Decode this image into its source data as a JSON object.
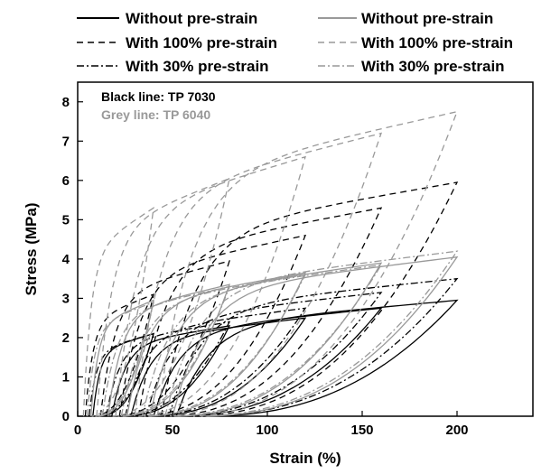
{
  "chart_data": {
    "type": "line",
    "xlabel": "Strain (%)",
    "ylabel": "Stress (MPa)",
    "xlim": [
      0,
      240
    ],
    "ylim": [
      0,
      8.5
    ],
    "xticks": [
      0,
      50,
      100,
      150,
      200
    ],
    "yticks": [
      0,
      1,
      2,
      3,
      4,
      5,
      6,
      7,
      8
    ],
    "grid": false,
    "legend_position": "top",
    "legend": [
      {
        "label": "Without pre-strain",
        "color": "#000000",
        "style": "solid"
      },
      {
        "label": "Without pre-strain",
        "color": "#999999",
        "style": "solid"
      },
      {
        "label": "With 100% pre-strain",
        "color": "#000000",
        "style": "dashed"
      },
      {
        "label": "With 100% pre-strain",
        "color": "#999999",
        "style": "dashed"
      },
      {
        "label": "With 30% pre-strain",
        "color": "#000000",
        "style": "dashdot"
      },
      {
        "label": "With 30% pre-strain",
        "color": "#999999",
        "style": "dashdot"
      }
    ],
    "annotations": [
      {
        "text": "Black line: TP 7030",
        "color": "#000000"
      },
      {
        "text": "Grey line: TP 6040",
        "color": "#999999"
      }
    ],
    "cycle_max_strains": [
      40,
      80,
      120,
      160,
      200
    ],
    "series": [
      {
        "material": "TP 7030",
        "pre_strain": "Without pre-strain",
        "color": "#000000",
        "style": "solid",
        "residual_strains": [
          8,
          18,
          28,
          40,
          52
        ],
        "peak_stresses": [
          2.1,
          2.3,
          2.5,
          2.75,
          2.95
        ]
      },
      {
        "material": "TP 7030",
        "pre_strain": "With 100% pre-strain",
        "color": "#000000",
        "style": "dashed",
        "residual_strains": [
          4,
          12,
          22,
          32,
          44
        ],
        "peak_stresses": [
          3.1,
          3.95,
          4.6,
          5.3,
          5.95
        ]
      },
      {
        "material": "TP 7030",
        "pre_strain": "With 30% pre-strain",
        "color": "#000000",
        "style": "dashdot",
        "residual_strains": [
          6,
          15,
          25,
          36,
          48
        ],
        "peak_stresses": [
          2.1,
          2.4,
          2.75,
          3.15,
          3.5
        ]
      },
      {
        "material": "TP 6040",
        "pre_strain": "Without pre-strain",
        "color": "#999999",
        "style": "solid",
        "residual_strains": [
          7,
          16,
          26,
          38,
          50
        ],
        "peak_stresses": [
          2.95,
          3.35,
          3.65,
          3.9,
          4.05
        ]
      },
      {
        "material": "TP 6040",
        "pre_strain": "With 100% pre-strain",
        "color": "#999999",
        "style": "dashed",
        "residual_strains": [
          3,
          10,
          20,
          30,
          42
        ],
        "peak_stresses": [
          5.3,
          6.05,
          6.6,
          7.2,
          7.75
        ]
      },
      {
        "material": "TP 6040",
        "pre_strain": "With 30% pre-strain",
        "color": "#999999",
        "style": "dashdot",
        "residual_strains": [
          5,
          13,
          23,
          34,
          46
        ],
        "peak_stresses": [
          2.9,
          3.3,
          3.6,
          3.85,
          4.2
        ]
      }
    ]
  }
}
